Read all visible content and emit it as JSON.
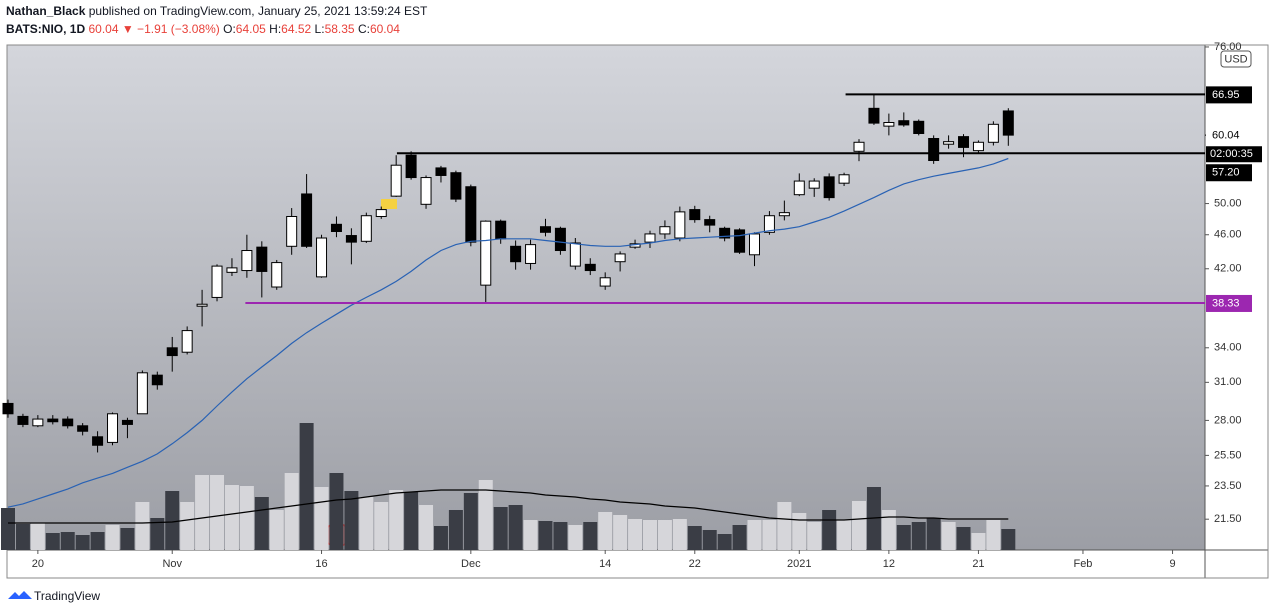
{
  "header": {
    "author": "Nathan_Black",
    "published": "published on TradingView.com, January 25, 2021 13:59:24 EST",
    "symbol": "BATS:NIO, 1D",
    "last": "60.04",
    "change": "▼ −1.91 (−3.08%)",
    "ohlc": [
      {
        "label": "O:",
        "value": "64.05"
      },
      {
        "label": "H:",
        "value": "64.52"
      },
      {
        "label": "L:",
        "value": "58.35"
      },
      {
        "label": "C:",
        "value": "60.04"
      }
    ]
  },
  "footer": {
    "brand": "TradingView"
  },
  "chart_data": {
    "type": "candlestick",
    "currency": "USD",
    "log_scale": true,
    "categories": [
      null,
      null,
      "20",
      null,
      null,
      null,
      null,
      null,
      null,
      null,
      null,
      "Nov",
      null,
      null,
      null,
      null,
      null,
      null,
      null,
      null,
      null,
      "16",
      null,
      null,
      null,
      null,
      null,
      null,
      null,
      null,
      null,
      "Dec",
      null,
      null,
      null,
      null,
      null,
      null,
      null,
      null,
      "14",
      null,
      null,
      null,
      null,
      null,
      "22",
      null,
      null,
      null,
      null,
      null,
      null,
      "2021",
      null,
      null,
      null,
      null,
      null,
      "12",
      null,
      null,
      null,
      null,
      null,
      "21",
      null,
      null,
      null,
      null,
      null,
      null,
      "Feb",
      null,
      null,
      null,
      null,
      null,
      "9"
    ],
    "open": [
      29.3,
      28.3,
      27.6,
      28.1,
      28.1,
      27.6,
      26.8,
      26.4,
      28.0,
      28.5,
      31.6,
      34.0,
      33.6,
      38.0,
      38.9,
      41.6,
      41.8,
      44.5,
      40.0,
      44.6,
      51.3,
      41.1,
      47.3,
      45.9,
      45.2,
      48.3,
      51.0,
      56.9,
      49.9,
      55.0,
      54.3,
      52.3,
      40.2,
      47.7,
      44.6,
      42.6,
      47.0,
      46.8,
      42.3,
      42.5,
      40.1,
      42.8,
      44.5,
      45.1,
      46.1,
      45.6,
      49.2,
      47.9,
      46.8,
      46.6,
      43.6,
      46.3,
      48.4,
      51.2,
      52.1,
      53.7,
      52.8,
      57.5,
      64.5,
      61.5,
      62.4,
      62.3,
      59.5,
      58.6,
      59.8,
      57.6,
      58.9,
      64.05,
      null,
      null,
      null,
      null,
      null,
      null,
      null,
      null,
      null,
      null,
      null
    ],
    "high": [
      29.6,
      28.5,
      28.4,
      28.4,
      28.3,
      27.8,
      27.2,
      28.6,
      28.2,
      32.0,
      31.9,
      35.0,
      36.0,
      39.7,
      42.5,
      43.2,
      46.0,
      45.2,
      43.0,
      49.4,
      54.1,
      46.0,
      48.3,
      46.8,
      48.8,
      49.6,
      56.9,
      57.5,
      53.9,
      55.3,
      54.6,
      52.6,
      47.8,
      47.9,
      45.3,
      45.4,
      48.0,
      47.0,
      45.6,
      43.2,
      41.6,
      44.0,
      45.4,
      46.5,
      47.8,
      49.6,
      49.7,
      48.4,
      47.0,
      46.8,
      46.3,
      49.0,
      50.4,
      54.2,
      53.5,
      54.2,
      54.3,
      59.4,
      66.95,
      63.6,
      63.8,
      62.6,
      60.0,
      60.0,
      60.2,
      59.2,
      62.3,
      64.52,
      null,
      null,
      null,
      null,
      null,
      null,
      null,
      null,
      null,
      null,
      null
    ],
    "low": [
      28.2,
      27.5,
      27.5,
      27.7,
      27.4,
      26.9,
      25.7,
      26.2,
      26.7,
      28.5,
      30.4,
      31.9,
      33.4,
      36.0,
      38.5,
      41.2,
      41.0,
      38.9,
      39.7,
      43.6,
      44.4,
      41.0,
      45.7,
      42.5,
      45.0,
      48.0,
      50.9,
      53.3,
      49.3,
      52.9,
      50.2,
      44.6,
      38.4,
      44.9,
      41.9,
      41.9,
      45.8,
      43.6,
      41.9,
      41.3,
      39.7,
      41.7,
      44.3,
      44.4,
      45.5,
      45.2,
      47.5,
      46.3,
      45.2,
      43.7,
      42.3,
      46.0,
      47.8,
      51.0,
      50.9,
      50.4,
      52.4,
      56.0,
      61.7,
      60.0,
      61.4,
      60.0,
      55.6,
      57.9,
      56.6,
      57.1,
      58.4,
      58.35,
      null,
      null,
      null,
      null,
      null,
      null,
      null,
      null,
      null,
      null,
      null
    ],
    "close": [
      28.5,
      27.7,
      28.1,
      27.9,
      27.6,
      27.2,
      26.2,
      28.5,
      27.7,
      31.8,
      30.8,
      33.3,
      35.6,
      38.2,
      42.3,
      42.1,
      44.1,
      41.7,
      42.7,
      48.3,
      44.6,
      45.6,
      46.4,
      45.1,
      48.4,
      49.2,
      55.4,
      53.6,
      53.6,
      53.9,
      50.6,
      45.1,
      47.7,
      45.5,
      42.8,
      44.8,
      46.3,
      44.1,
      45.0,
      41.8,
      41.0,
      43.7,
      44.9,
      46.1,
      47.0,
      48.9,
      47.9,
      47.2,
      45.6,
      43.9,
      46.1,
      48.4,
      48.8,
      53.1,
      53.1,
      50.8,
      54.0,
      58.9,
      62.0,
      62.1,
      61.7,
      60.3,
      56.1,
      59.0,
      58.1,
      58.9,
      61.8,
      60.04,
      null,
      null,
      null,
      null,
      null,
      null,
      null,
      null,
      null,
      null,
      null
    ],
    "volume": [
      42,
      26,
      27,
      17,
      18,
      15,
      18,
      25,
      22,
      48,
      32,
      59,
      48,
      75,
      75,
      65,
      64,
      53,
      40,
      77,
      127,
      63,
      77,
      59,
      53,
      48,
      60,
      58,
      45,
      24,
      40,
      57,
      70,
      43,
      45,
      30,
      29,
      28,
      25,
      28,
      38,
      35,
      31,
      30,
      30,
      31,
      24,
      20,
      16,
      25,
      30,
      30,
      48,
      37,
      28,
      40,
      30,
      49,
      63,
      40,
      25,
      28,
      32,
      28,
      23,
      17,
      30,
      21,
      null,
      null,
      null,
      null,
      null,
      null,
      null,
      null,
      null,
      null,
      null
    ],
    "ma": [
      22.2,
      22.4,
      22.7,
      23.0,
      23.3,
      23.7,
      24.0,
      24.3,
      24.7,
      25.1,
      25.6,
      26.3,
      27.1,
      28.0,
      29.1,
      30.2,
      31.3,
      32.3,
      33.3,
      34.4,
      35.4,
      36.3,
      37.2,
      38.1,
      38.9,
      39.7,
      40.6,
      41.7,
      43.0,
      44.1,
      44.8,
      45.2,
      45.3,
      45.5,
      45.5,
      45.5,
      45.3,
      45.1,
      44.9,
      44.7,
      44.6,
      44.6,
      44.8,
      45.0,
      45.3,
      45.5,
      45.6,
      45.7,
      45.8,
      45.9,
      46.2,
      46.5,
      46.7,
      47.0,
      47.6,
      48.2,
      49.0,
      49.9,
      50.8,
      51.8,
      52.7,
      53.3,
      53.8,
      54.2,
      54.6,
      55.0,
      55.6,
      56.4,
      null,
      null,
      null,
      null,
      null,
      null,
      null,
      null,
      null,
      null,
      null
    ],
    "volume_ma": [
      27,
      27,
      27,
      27,
      27,
      27,
      27,
      27,
      27,
      27,
      27.5,
      28,
      30,
      32,
      34,
      36,
      38,
      40,
      42,
      44,
      46,
      48,
      50,
      51,
      53,
      55,
      57,
      58,
      59,
      60,
      60,
      60,
      60,
      59,
      58,
      57,
      55,
      54,
      53,
      51,
      50,
      48,
      47,
      46,
      44,
      43,
      42,
      40,
      38,
      36,
      34,
      32,
      31,
      30,
      30,
      30,
      30,
      31,
      32,
      33,
      33,
      32,
      32,
      31,
      31,
      31,
      31,
      31,
      null,
      null,
      null,
      null,
      null,
      null,
      null,
      null,
      null,
      null,
      null
    ],
    "up_color": "#ffffff",
    "down_color": "#000000",
    "wick_color": "#000000",
    "volume_up_color": "#d6d6da",
    "volume_down_color": "#3a3d45",
    "ma_color": "#2962b4",
    "volume_ma_color": "#000000",
    "ylim": [
      19.8,
      76.4
    ],
    "yticks": [
      {
        "value": 21.5,
        "label": "21.50"
      },
      {
        "value": 23.5,
        "label": "23.50"
      },
      {
        "value": 25.5,
        "label": "25.50"
      },
      {
        "value": 28,
        "label": "28.00"
      },
      {
        "value": 31,
        "label": "31.00"
      },
      {
        "value": 34,
        "label": "34.00"
      },
      {
        "value": 42,
        "label": "42.00"
      },
      {
        "value": 46,
        "label": "46.00"
      },
      {
        "value": 50,
        "label": "50.00"
      },
      {
        "value": 76,
        "label": "76.00"
      }
    ],
    "levels": [
      {
        "value": 66.95,
        "label": "66.95",
        "color": "#000000"
      },
      {
        "value": 57.2,
        "label": "57.20",
        "color": "#000000"
      },
      {
        "value": 38.33,
        "label": "38.33",
        "color": "#9c27b0"
      }
    ],
    "last_price": {
      "value": 60.04,
      "label": "60.04",
      "countdown": "02:00:35"
    }
  }
}
